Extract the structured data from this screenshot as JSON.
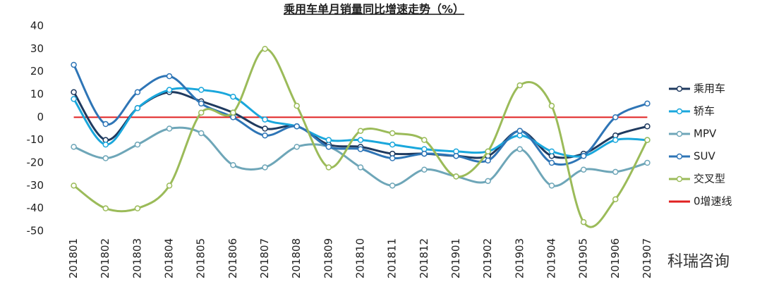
{
  "chart_data": {
    "type": "line",
    "title": "乘用车单月销量同比增速走势（%）",
    "categories": [
      "201801",
      "201802",
      "201803",
      "201804",
      "201805",
      "201806",
      "201807",
      "201808",
      "201809",
      "201810",
      "201811",
      "201812",
      "201901",
      "201902",
      "201903",
      "201904",
      "201905",
      "201906",
      "201907"
    ],
    "series": [
      {
        "name": "乘用车",
        "color": "#1f3a5f",
        "values": [
          11,
          -10,
          4,
          11,
          7,
          2,
          -5,
          -4,
          -12,
          -13,
          -16,
          -16,
          -17,
          -17,
          -6,
          -17,
          -16,
          -8,
          -4
        ]
      },
      {
        "name": "轿车",
        "color": "#1aa7dc",
        "values": [
          8,
          -12,
          4,
          12,
          12,
          9,
          -1,
          -4,
          -10,
          -10,
          -12,
          -14,
          -15,
          -15,
          -8,
          -15,
          -17,
          -10,
          -10
        ]
      },
      {
        "name": "MPV",
        "color": "#6ea6b8",
        "values": [
          -13,
          -18,
          -12,
          -5,
          -7,
          -21,
          -22,
          -13,
          -13,
          -22,
          -30,
          -23,
          -26,
          -28,
          -14,
          -30,
          -23,
          -24,
          -20
        ]
      },
      {
        "name": "SUV",
        "color": "#2e75b6",
        "values": [
          23,
          -3,
          11,
          18,
          6,
          0,
          -8,
          -4,
          -13,
          -14,
          -18,
          -16,
          -17,
          -19,
          -6,
          -20,
          -17,
          0,
          6
        ]
      },
      {
        "name": "交叉型",
        "color": "#9bbb59",
        "values": [
          -30,
          -40,
          -40,
          -30,
          2,
          2,
          30,
          5,
          -22,
          -6,
          -7,
          -10,
          -26,
          -15,
          14,
          5,
          -46,
          -36,
          -10
        ]
      }
    ],
    "reference_line": {
      "name": "0增速线",
      "value": 0,
      "color": "#e02020"
    },
    "ylim": [
      -50,
      40
    ],
    "yticks": [
      -50,
      -40,
      -30,
      -20,
      -10,
      0,
      10,
      20,
      30,
      40
    ],
    "legend": "right",
    "smooth": true,
    "logo": "科瑞咨询"
  }
}
